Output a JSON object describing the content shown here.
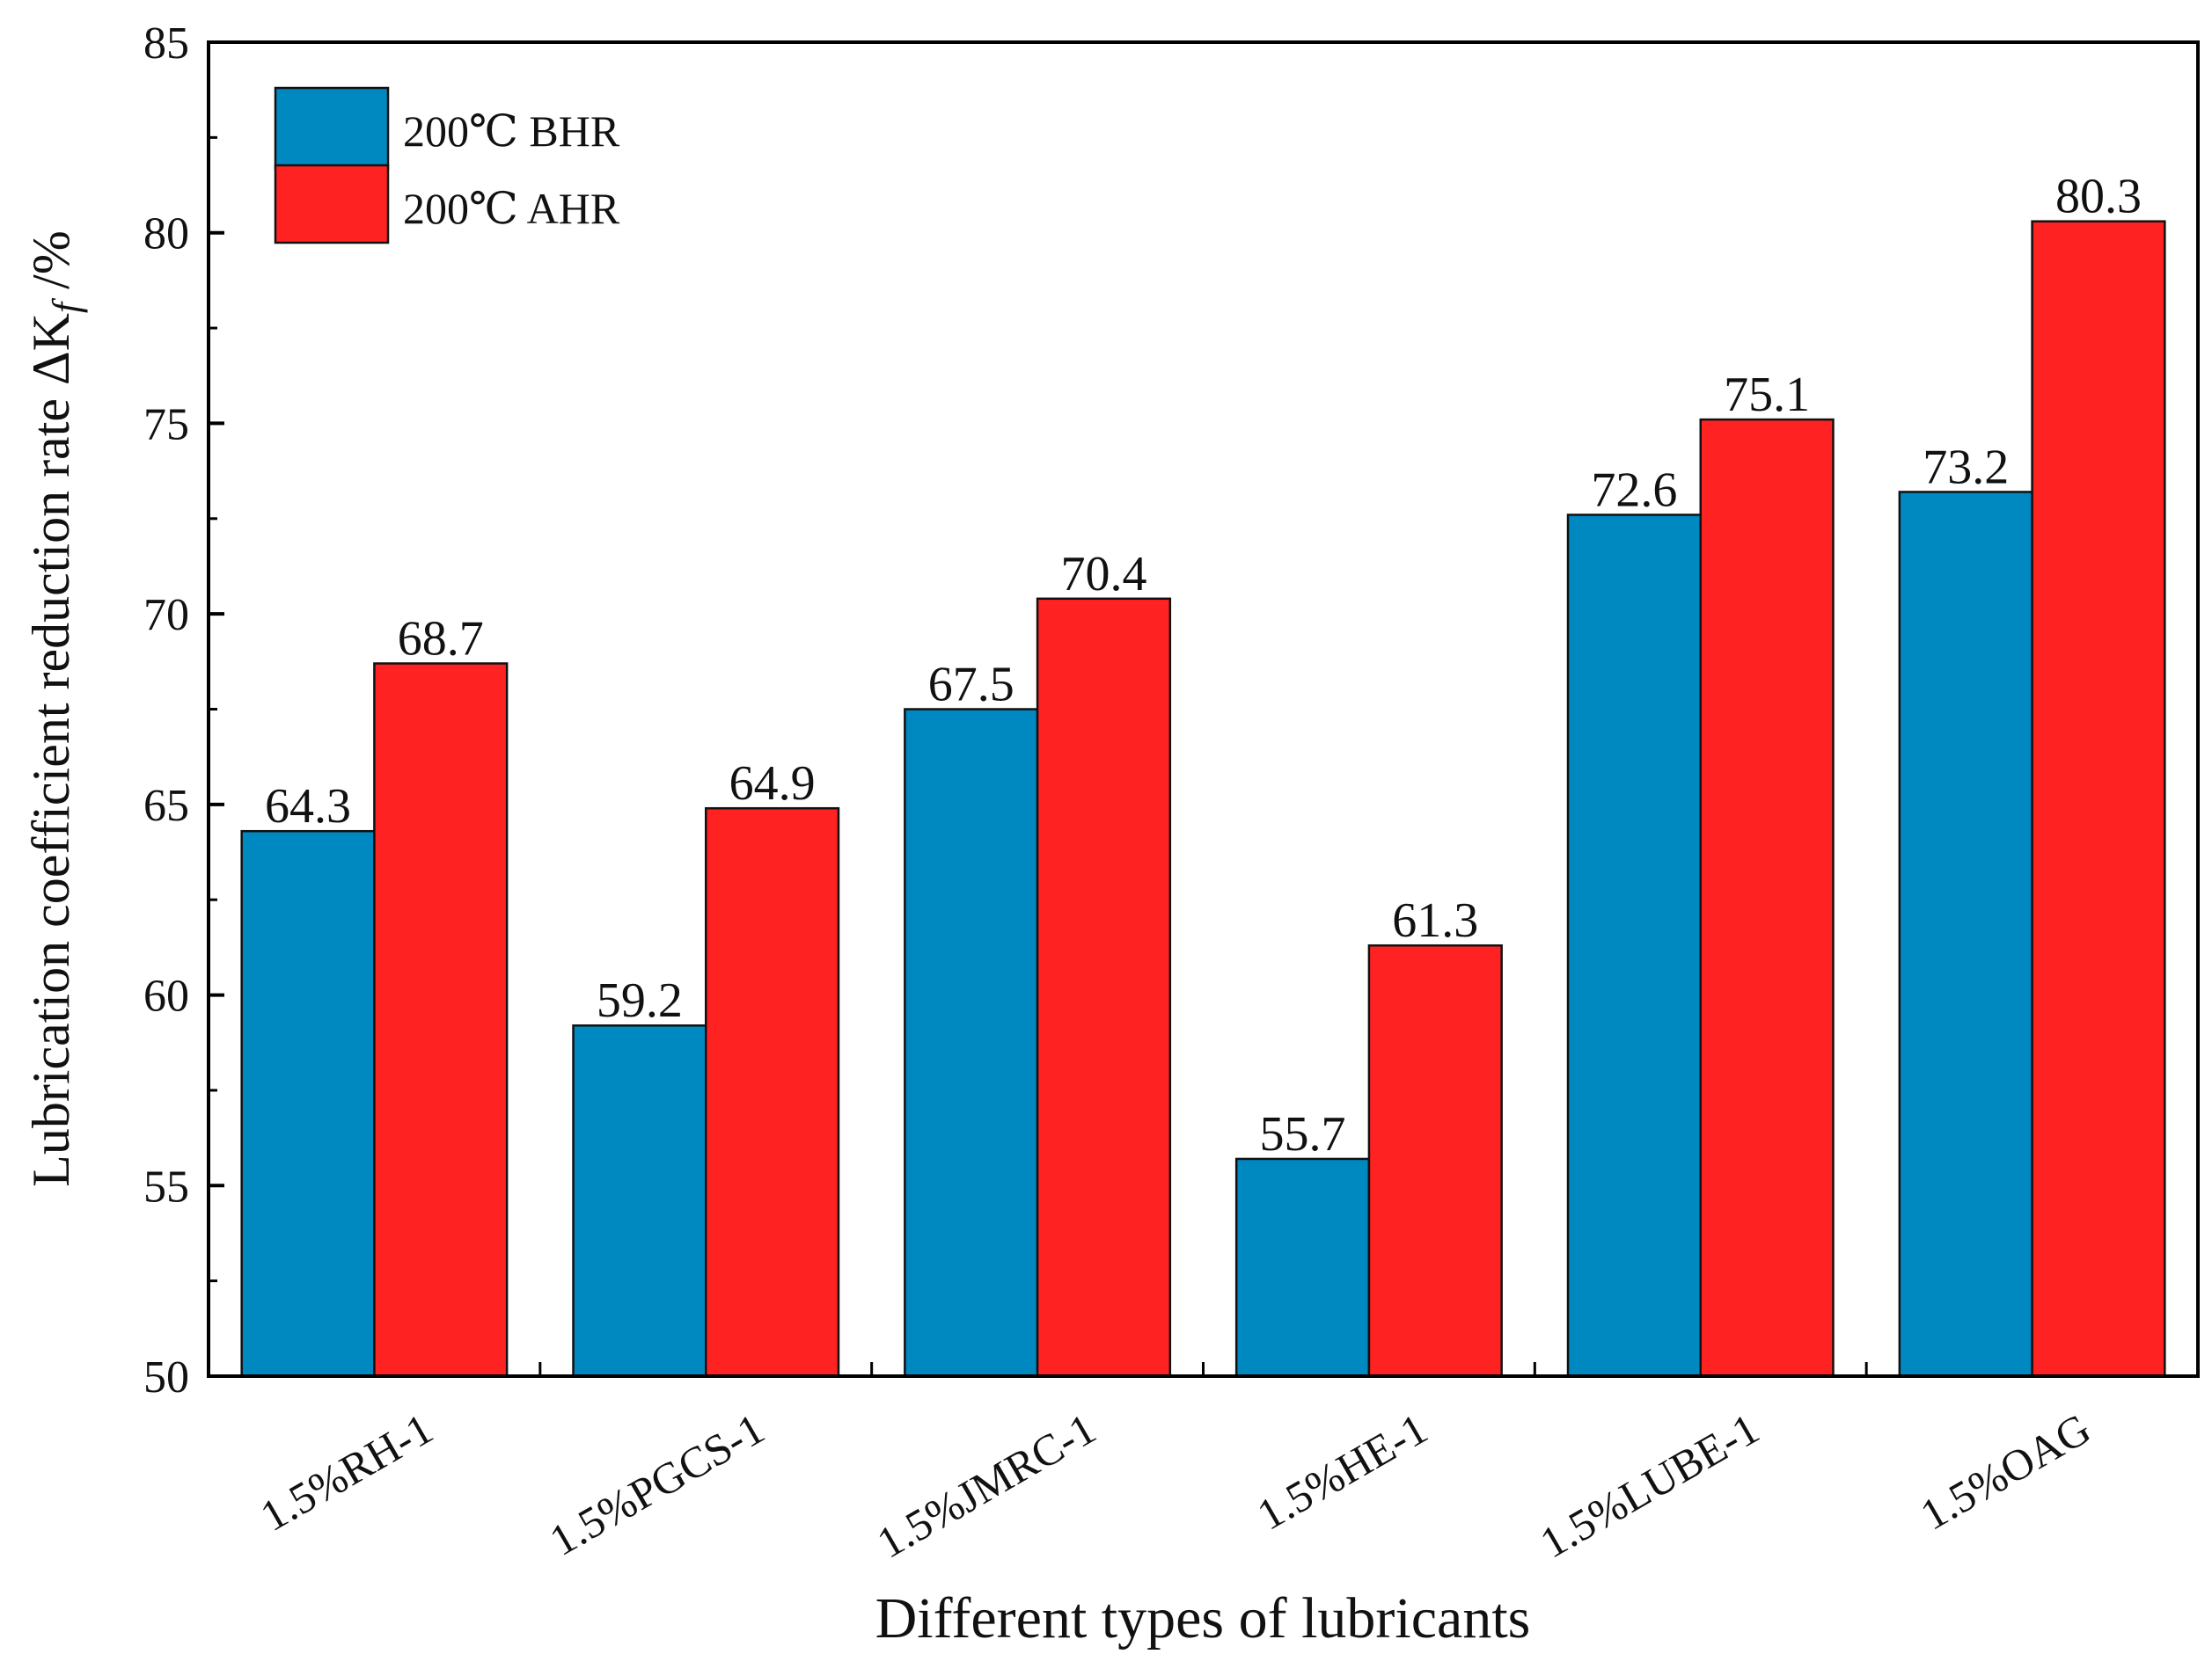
{
  "chart_data": {
    "type": "bar",
    "title": "",
    "xlabel": "Different types of lubricants",
    "ylabel": "Lubrication coefficient reduction rate ΔK",
    "ylabel_subscript": "f",
    "ylabel_suffix": " /%",
    "ylim": [
      50,
      85
    ],
    "yticks": [
      50,
      55,
      60,
      65,
      70,
      75,
      80,
      85
    ],
    "grid": false,
    "legend_position": "top-left",
    "categories": [
      "1.5%RH-1",
      "1.5%PGCS-1",
      "1.5%JMRC-1",
      "1.5%HE-1",
      "1.5%LUBE-1",
      "1.5%OAG"
    ],
    "series": [
      {
        "name": "200℃ BHR",
        "color": "#0088c0",
        "values": [
          64.3,
          59.2,
          67.5,
          55.7,
          72.6,
          73.2
        ]
      },
      {
        "name": "200℃ AHR",
        "color": "#ff2222",
        "values": [
          68.7,
          64.9,
          70.4,
          61.3,
          75.1,
          80.3
        ]
      }
    ]
  }
}
